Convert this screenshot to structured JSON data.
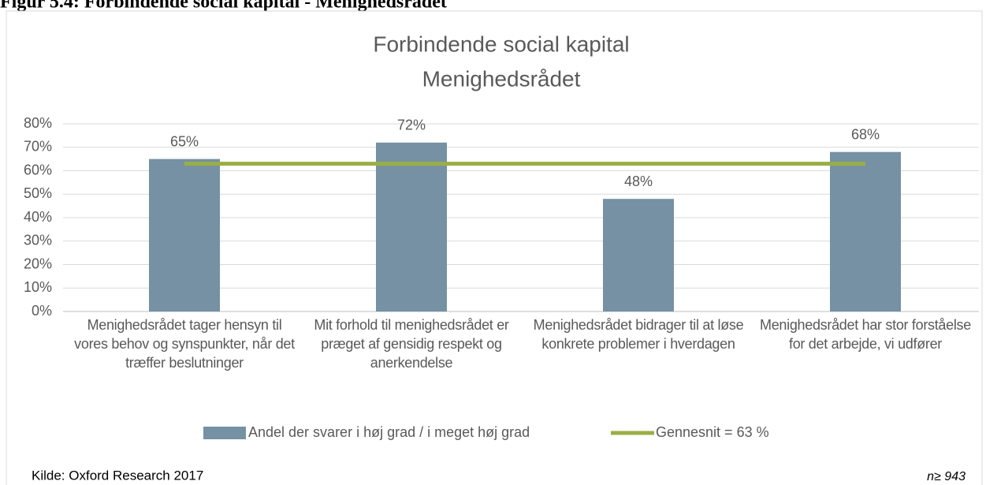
{
  "chart_data": {
    "type": "bar",
    "figure_caption": "Figur 5.4: Forbindende social kapital - Menighedsrådet",
    "title": [
      "Forbindende social kapital",
      "Menighedsrådet"
    ],
    "categories": [
      "Menighedsrådet tager hensyn til vores behov og synspunkter, når det træffer beslutninger",
      "Mit forhold til menighedsrådet er præget af gensidig respekt og anerkendelse",
      "Menighedsrådet bidrager til at løse konkrete problemer i hverdagen",
      "Menighedsrådet har stor forståelse for det arbejde, vi udfører"
    ],
    "series": [
      {
        "name": "Andel der svarer i høj grad / i meget høj grad",
        "color": "#7591a3",
        "type": "bar",
        "values": [
          65,
          72,
          48,
          68
        ],
        "value_labels": [
          "65%",
          "72%",
          "48%",
          "68%"
        ]
      },
      {
        "name": "Gennesnit = 63 %",
        "color": "#9aae45",
        "type": "line",
        "values": [
          63,
          63,
          63,
          63
        ]
      }
    ],
    "ylim": [
      0,
      80
    ],
    "yticks": [
      {
        "value": 0,
        "label": "0%"
      },
      {
        "value": 10,
        "label": "10%"
      },
      {
        "value": 20,
        "label": "20%"
      },
      {
        "value": 30,
        "label": "30%"
      },
      {
        "value": 40,
        "label": "40%"
      },
      {
        "value": 50,
        "label": "50%"
      },
      {
        "value": 60,
        "label": "60%"
      },
      {
        "value": 70,
        "label": "70%"
      },
      {
        "value": 80,
        "label": "80%"
      }
    ],
    "grid": true,
    "legend": "bottom",
    "source": "Kilde: Oxford Research 2017",
    "note": "n≥ 943"
  }
}
